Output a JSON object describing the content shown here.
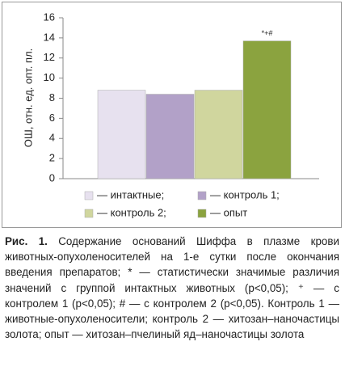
{
  "chart_data": {
    "type": "bar",
    "y_label": "ОШ, отн. ед. опт. пл.",
    "categories": [
      null
    ],
    "series": [
      {
        "name": "— интактные;",
        "color": "#e7e1ef",
        "values": [
          8.8
        ]
      },
      {
        "name": "— контроль 1;",
        "color": "#b2a1c8",
        "values": [
          8.4
        ]
      },
      {
        "name": "— контроль 2;",
        "color": "#d0d69e",
        "values": [
          8.8
        ]
      },
      {
        "name": "— опыт",
        "color": "#8ba33f",
        "values": [
          13.7
        ],
        "annotation": "*+#"
      }
    ],
    "ylim": [
      0,
      16
    ],
    "yticks": [
      0,
      2,
      4,
      6,
      8,
      10,
      12,
      14,
      16
    ],
    "grid": false
  },
  "caption": {
    "label": "Рис. 1.",
    "text": "Содержание оснований Шиффа в плазме крови животных-опухоленосителей на 1-е сутки после окончания введения препаратов; * — статистически значимые различия значений с группой интактных животных (p<0,05); ⁺ — с контролем 1 (p<0,05); # — с контролем 2 (p<0,05). Контроль 1 — животные-опухоленосители; контроль 2 — хитозан–наночастицы золота; опыт — хитозан–пчелиный яд–наночастицы золота"
  }
}
